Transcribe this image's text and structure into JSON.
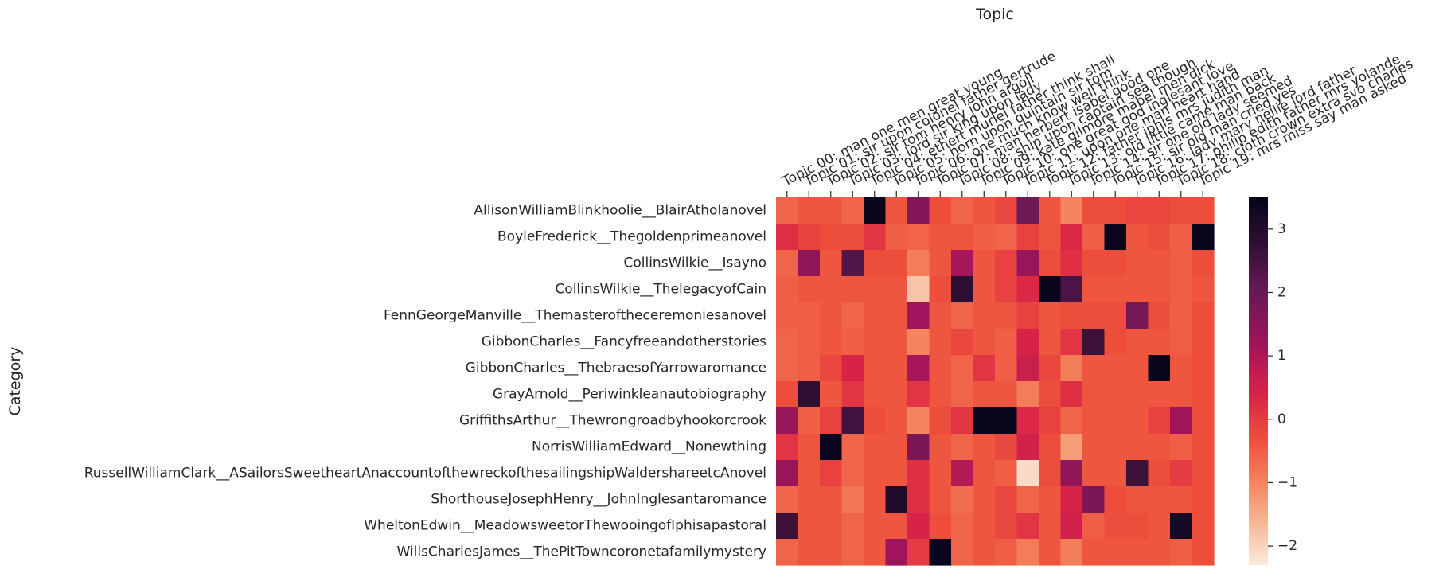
{
  "chart_data": {
    "type": "heatmap",
    "xlabel": "Topic",
    "ylabel": "Category",
    "x_axis_position": "top",
    "grid": false,
    "colormap": "rocket",
    "colorbar": {
      "position": "right",
      "range": [
        -2.3,
        3.5
      ],
      "ticks": [
        3,
        2,
        1,
        0,
        -1,
        -2
      ],
      "tick_labels": [
        "3",
        "2",
        "1",
        "0",
        "−1",
        "−2"
      ]
    },
    "x_categories": [
      "Topic 00: man one men great young",
      "Topic 01: sir upon colonel father gertrude",
      "Topic 02: sir tom henry john argoll",
      "Topic 03: lord sir king upon lady",
      "Topic 04: ethert muriel father think shall",
      "Topic 05: horn upon quintain sir tom",
      "Topic 06: one much know well think",
      "Topic 07: man herbert isabel good one",
      "Topic 08: ship upon captain sea though",
      "Topic 09: kate gilmore mabel men dick",
      "Topic 10: one great god inglesant love",
      "Topic 11: upon one man heart hand",
      "Topic 12: father iphis mrs judith man",
      "Topic 13: old little came man back",
      "Topic 14: sir one old lady seemed",
      "Topic 15: sir old man cried yes",
      "Topic 16: lady mary nellie lord father",
      "Topic 17: philip edith father mrs yolande",
      "Topic 18: cloth crown extra svo charles",
      "Topic 19: mrs miss say man asked"
    ],
    "y_categories": [
      "AllisonWilliamBlinkhoolie__BlairAtholanovel",
      "BoyleFrederick__Thegoldenprimeanovel",
      "CollinsWilkie__Isayno",
      "CollinsWilkie__ThelegacyofCain",
      "FennGeorgeManville__Themasteroftheceremoniesanovel",
      "GibbonCharles__Fancyfreeandotherstories",
      "GibbonCharles__ThebraesofYarrowaromance",
      "GrayArnold__Periwinkleanautobiography",
      "GriffithsArthur__Thewrongroadbyhookorcrook",
      "NorrisWilliamEdward__Nonewthing",
      "RussellWilliamClark__ASailorsSweetheartAnaccountofthewreckofthesailingshipWaldershareetcAnovel",
      "ShorthouseJosephHenry__JohnInglesantaromance",
      "WheltonEdwin__MeadowsweetorThewooingofIphisapastoral",
      "WillsCharlesJames__ThePitTowncoronetafamilymystery"
    ],
    "values": [
      [
        -0.6,
        -0.4,
        -0.4,
        -0.6,
        3.4,
        -0.4,
        1.6,
        -0.3,
        -0.6,
        -0.4,
        -0.2,
        1.9,
        -0.4,
        -1.0,
        -0.3,
        -0.3,
        -0.2,
        -0.2,
        -0.3,
        -0.3
      ],
      [
        0.2,
        -0.1,
        -0.3,
        -0.3,
        0.1,
        -0.5,
        -0.6,
        -0.4,
        -0.4,
        -0.5,
        -0.6,
        -0.1,
        -0.4,
        0.3,
        -0.5,
        3.4,
        -0.4,
        -0.3,
        -0.5,
        3.4
      ],
      [
        -0.6,
        1.4,
        -0.4,
        2.3,
        -0.3,
        -0.3,
        -0.9,
        -0.4,
        1.1,
        -0.4,
        -0.1,
        1.3,
        -0.3,
        0.2,
        -0.3,
        -0.3,
        -0.4,
        -0.4,
        -0.5,
        -0.3
      ],
      [
        -0.5,
        -0.4,
        -0.4,
        -0.4,
        -0.4,
        -0.4,
        -1.8,
        -0.3,
        2.8,
        -0.4,
        -0.1,
        0.3,
        3.4,
        2.4,
        -0.4,
        -0.4,
        -0.4,
        -0.4,
        -0.5,
        -0.4
      ],
      [
        -0.5,
        -0.5,
        -0.4,
        -0.6,
        -0.4,
        -0.4,
        1.2,
        -0.4,
        -0.6,
        -0.4,
        -0.4,
        -0.1,
        -0.4,
        -0.3,
        -0.3,
        -0.3,
        1.8,
        -0.3,
        -0.5,
        -0.3
      ],
      [
        -0.6,
        -0.5,
        -0.4,
        -0.5,
        -0.4,
        -0.4,
        -1.0,
        -0.4,
        -0.2,
        -0.4,
        -0.5,
        0.4,
        -0.4,
        0.1,
        2.6,
        -0.3,
        -0.4,
        -0.4,
        -0.5,
        -0.3
      ],
      [
        -0.6,
        -0.5,
        -0.2,
        0.4,
        -0.4,
        -0.4,
        1.1,
        -0.4,
        -0.6,
        0.1,
        -0.5,
        0.6,
        -0.2,
        -0.9,
        -0.4,
        -0.4,
        -0.4,
        3.4,
        -0.4,
        -0.3
      ],
      [
        -0.3,
        2.8,
        -0.4,
        0.1,
        -0.4,
        -0.4,
        0.1,
        -0.4,
        -0.6,
        -0.4,
        -0.4,
        -0.9,
        -0.3,
        0.2,
        -0.4,
        -0.4,
        -0.4,
        -0.4,
        -0.4,
        -0.3
      ],
      [
        1.3,
        -0.5,
        -0.1,
        2.5,
        -0.3,
        -0.4,
        -1.0,
        -0.3,
        0.1,
        3.4,
        3.4,
        0.3,
        -0.1,
        -0.6,
        -0.4,
        -0.4,
        -0.4,
        -0.1,
        1.2,
        -0.3
      ],
      [
        0.1,
        -0.4,
        3.4,
        -0.6,
        -0.4,
        -0.4,
        1.7,
        -0.4,
        -0.6,
        -0.4,
        -0.2,
        0.5,
        -0.3,
        -1.3,
        -0.4,
        -0.4,
        -0.4,
        -0.4,
        -0.5,
        -0.3
      ],
      [
        1.3,
        -0.4,
        -0.1,
        -0.6,
        -0.4,
        -0.4,
        0.2,
        -0.4,
        0.9,
        -0.4,
        -0.5,
        -2.1,
        -0.3,
        1.4,
        -0.4,
        -0.4,
        2.6,
        -0.3,
        0.0,
        -0.3
      ],
      [
        -0.6,
        -0.4,
        -0.4,
        -0.8,
        -0.4,
        3.0,
        0.2,
        -0.4,
        -0.7,
        -0.4,
        -0.2,
        -0.6,
        -0.4,
        0.4,
        1.7,
        -0.3,
        -0.4,
        -0.4,
        -0.4,
        -0.3
      ],
      [
        2.6,
        -0.4,
        -0.4,
        -0.6,
        -0.4,
        -0.4,
        0.4,
        -0.3,
        -0.6,
        -0.4,
        -0.2,
        0.1,
        -0.4,
        0.5,
        -0.5,
        -0.3,
        -0.3,
        -0.4,
        3.2,
        -0.3
      ],
      [
        -0.6,
        -0.4,
        -0.4,
        -0.6,
        -0.4,
        1.2,
        0.0,
        3.4,
        -0.6,
        -0.4,
        -0.5,
        -0.9,
        -0.4,
        -0.9,
        -0.4,
        -0.4,
        -0.4,
        -0.4,
        -0.5,
        -0.3
      ]
    ]
  }
}
